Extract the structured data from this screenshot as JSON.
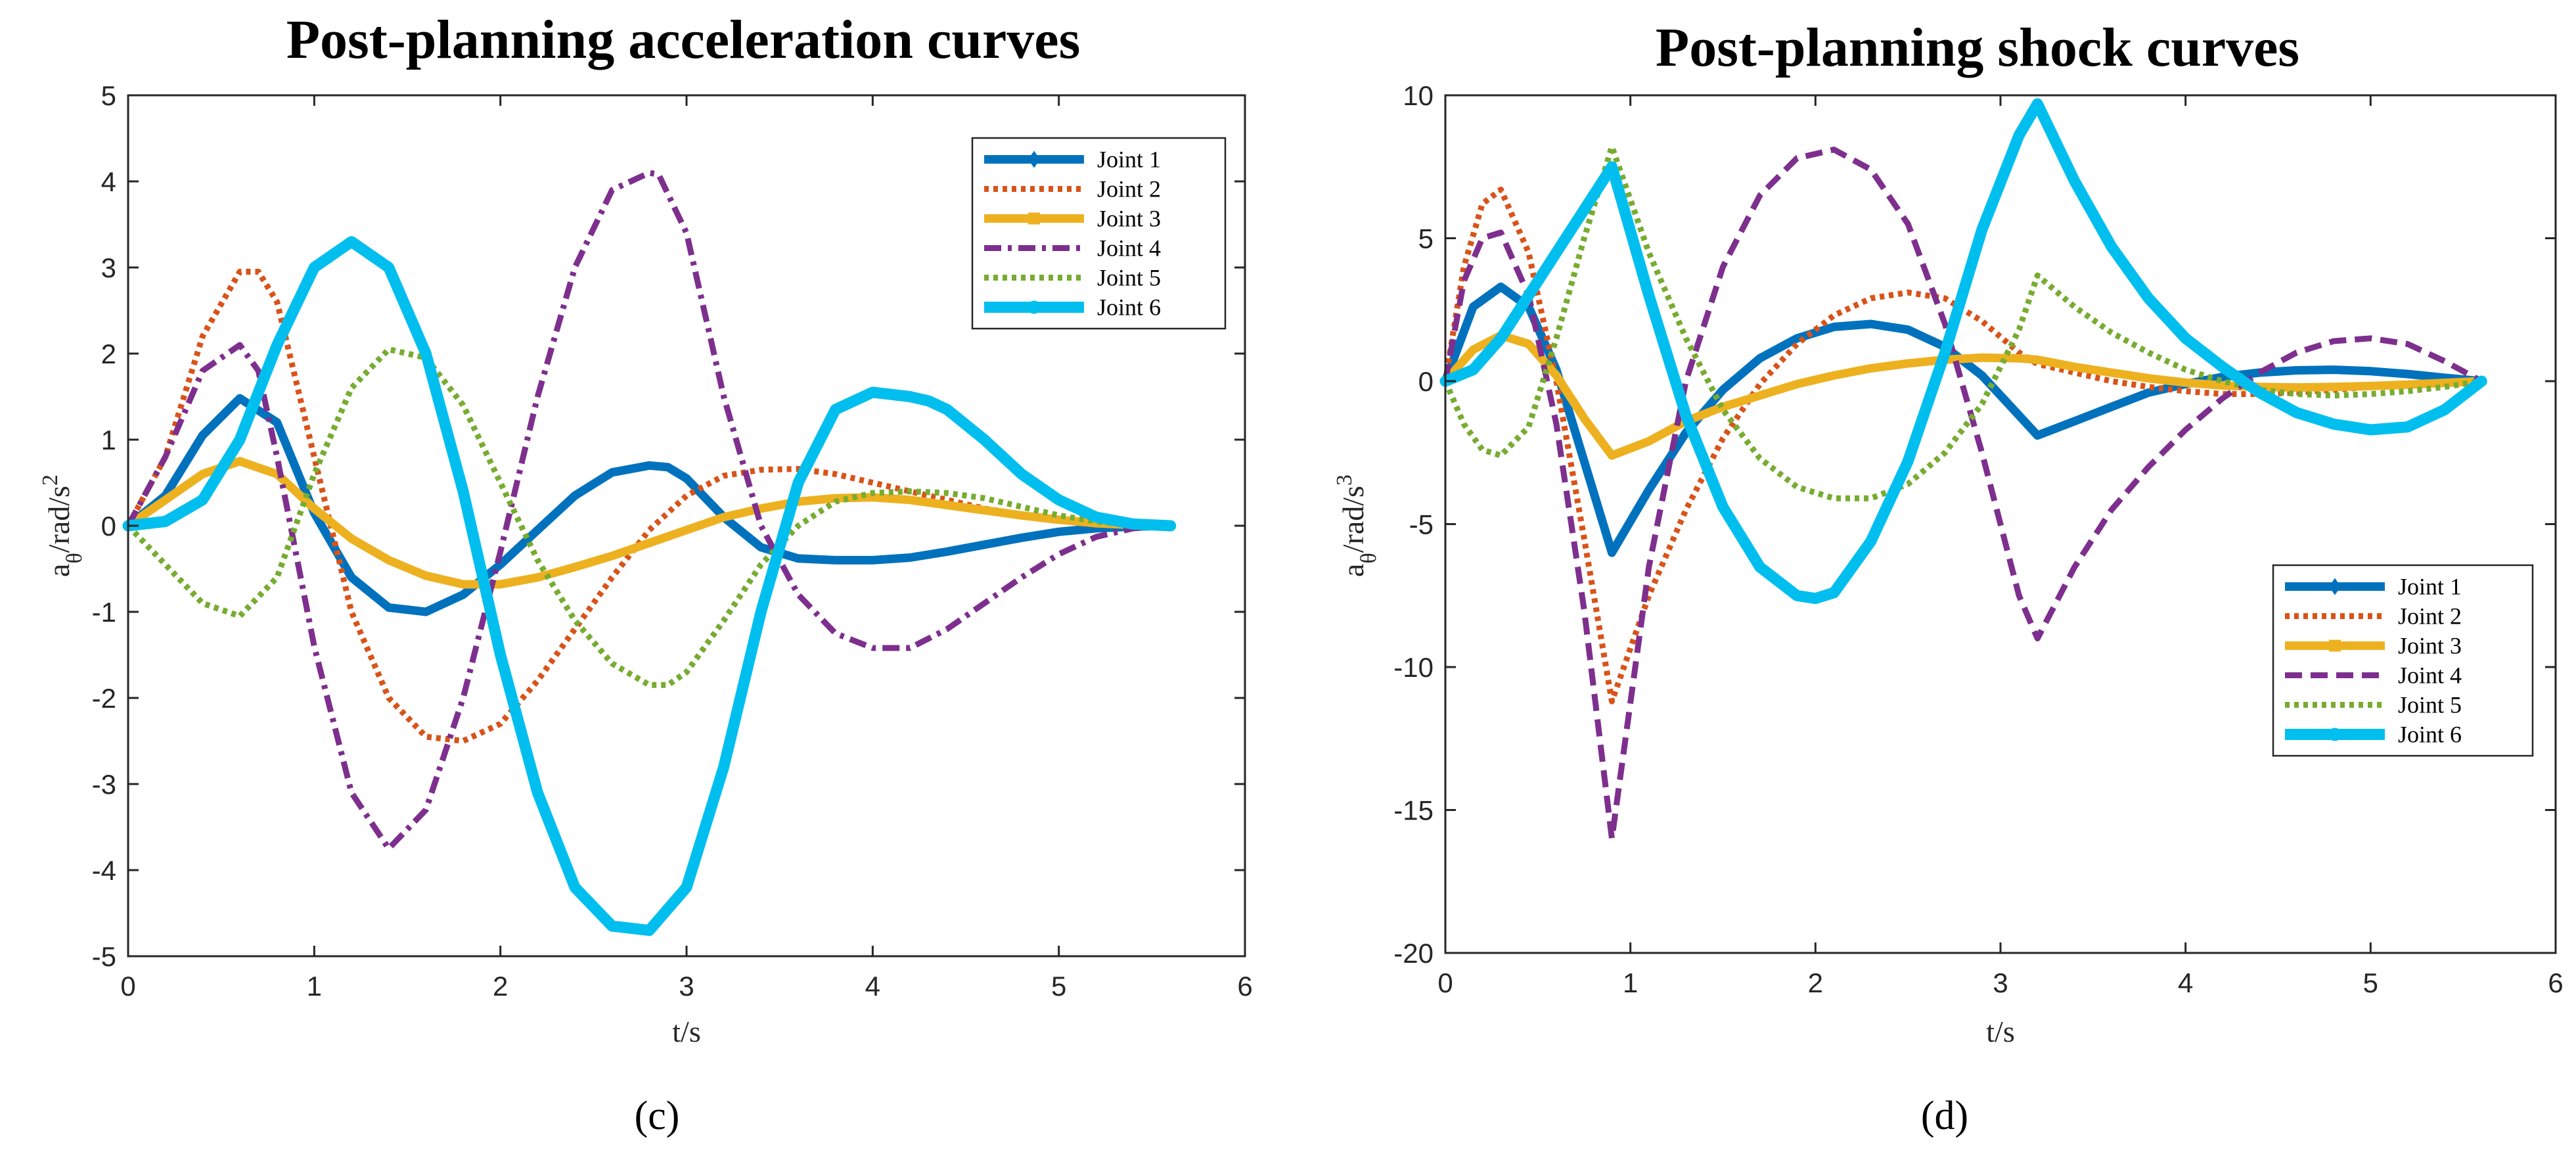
{
  "chart_data": [
    {
      "type": "line",
      "title": "Post-planning acceleration curves",
      "panel_label": "(c)",
      "xlabel": "t/s",
      "ylabel": "a_θ/rad/s²",
      "ylabel_parts": [
        "a",
        "θ",
        "/rad/s",
        "2"
      ],
      "xlim": [
        0,
        6
      ],
      "ylim": [
        -5,
        5
      ],
      "xticks": [
        0,
        1,
        2,
        3,
        4,
        5,
        6
      ],
      "yticks": [
        -5,
        -4,
        -3,
        -2,
        -1,
        0,
        1,
        2,
        3,
        4,
        5
      ],
      "legend_position": "top-right",
      "series": [
        {
          "name": "Joint 1",
          "color": "#0072BD",
          "dash": "0",
          "marker": "diamond",
          "width": 13,
          "x": [
            0,
            0.2,
            0.4,
            0.6,
            0.8,
            1.0,
            1.2,
            1.4,
            1.6,
            1.8,
            2.0,
            2.2,
            2.4,
            2.6,
            2.8,
            2.9,
            3.0,
            3.2,
            3.4,
            3.6,
            3.8,
            4.0,
            4.2,
            4.4,
            4.6,
            4.8,
            5.0,
            5.2,
            5.4,
            5.6
          ],
          "y": [
            0,
            0.35,
            1.05,
            1.48,
            1.2,
            0.15,
            -0.6,
            -0.95,
            -1.0,
            -0.8,
            -0.45,
            -0.05,
            0.35,
            0.62,
            0.7,
            0.68,
            0.55,
            0.1,
            -0.25,
            -0.38,
            -0.4,
            -0.4,
            -0.37,
            -0.3,
            -0.22,
            -0.14,
            -0.07,
            -0.03,
            -0.01,
            0
          ]
        },
        {
          "name": "Joint 2",
          "color": "#D95319",
          "dash": "7 7",
          "marker": "none",
          "width": 9,
          "x": [
            0,
            0.2,
            0.4,
            0.6,
            0.7,
            0.8,
            1.0,
            1.2,
            1.4,
            1.6,
            1.8,
            2.0,
            2.2,
            2.4,
            2.6,
            2.8,
            3.0,
            3.2,
            3.4,
            3.6,
            3.8,
            4.0,
            4.2,
            4.4,
            4.6,
            4.8,
            5.0,
            5.2,
            5.4,
            5.6
          ],
          "y": [
            0,
            0.8,
            2.2,
            2.95,
            2.95,
            2.6,
            0.8,
            -1.0,
            -2.0,
            -2.45,
            -2.5,
            -2.3,
            -1.8,
            -1.2,
            -0.6,
            -0.05,
            0.35,
            0.58,
            0.65,
            0.66,
            0.6,
            0.5,
            0.4,
            0.3,
            0.2,
            0.13,
            0.07,
            0.03,
            0.01,
            0
          ]
        },
        {
          "name": "Joint 3",
          "color": "#EDB120",
          "dash": "0",
          "marker": "square",
          "width": 13,
          "x": [
            0,
            0.2,
            0.4,
            0.6,
            0.8,
            1.0,
            1.2,
            1.4,
            1.6,
            1.8,
            2.0,
            2.2,
            2.4,
            2.6,
            2.8,
            3.0,
            3.2,
            3.4,
            3.6,
            3.8,
            4.0,
            4.2,
            4.4,
            4.6,
            4.8,
            5.0,
            5.2,
            5.4,
            5.6
          ],
          "y": [
            0,
            0.3,
            0.6,
            0.75,
            0.6,
            0.2,
            -0.15,
            -0.4,
            -0.58,
            -0.68,
            -0.68,
            -0.6,
            -0.48,
            -0.35,
            -0.2,
            -0.05,
            0.1,
            0.2,
            0.28,
            0.32,
            0.33,
            0.3,
            0.24,
            0.18,
            0.12,
            0.07,
            0.03,
            0.01,
            0
          ]
        },
        {
          "name": "Joint 4",
          "color": "#7E2F8E",
          "dash": "26 10 6 10",
          "marker": "none",
          "width": 9,
          "x": [
            0,
            0.2,
            0.4,
            0.6,
            0.7,
            0.8,
            1.0,
            1.2,
            1.4,
            1.6,
            1.8,
            2.0,
            2.2,
            2.4,
            2.6,
            2.8,
            2.85,
            3.0,
            3.2,
            3.4,
            3.6,
            3.8,
            4.0,
            4.2,
            4.4,
            4.6,
            4.8,
            5.0,
            5.2,
            5.4,
            5.6
          ],
          "y": [
            0,
            0.8,
            1.8,
            2.1,
            1.8,
            0.8,
            -1.4,
            -3.1,
            -3.75,
            -3.3,
            -2.0,
            -0.3,
            1.5,
            3.0,
            3.9,
            4.1,
            4.08,
            3.4,
            1.5,
            0.0,
            -0.8,
            -1.25,
            -1.42,
            -1.42,
            -1.2,
            -0.9,
            -0.6,
            -0.33,
            -0.13,
            -0.03,
            0
          ]
        },
        {
          "name": "Joint 5",
          "color": "#77AC30",
          "dash": "7 7",
          "marker": "none",
          "width": 9,
          "x": [
            0,
            0.2,
            0.4,
            0.6,
            0.8,
            1.0,
            1.2,
            1.4,
            1.6,
            1.8,
            2.0,
            2.2,
            2.4,
            2.6,
            2.8,
            2.9,
            3.0,
            3.2,
            3.4,
            3.6,
            3.8,
            4.0,
            4.2,
            4.4,
            4.6,
            4.8,
            5.0,
            5.2,
            5.4,
            5.6
          ],
          "y": [
            0,
            -0.45,
            -0.9,
            -1.05,
            -0.6,
            0.6,
            1.6,
            2.05,
            1.95,
            1.4,
            0.5,
            -0.4,
            -1.1,
            -1.6,
            -1.85,
            -1.85,
            -1.7,
            -1.1,
            -0.45,
            0.0,
            0.28,
            0.38,
            0.4,
            0.38,
            0.32,
            0.22,
            0.12,
            0.05,
            0.01,
            0
          ]
        },
        {
          "name": "Joint 6",
          "color": "#00BFEF",
          "dash": "0",
          "marker": "circle",
          "width": 17,
          "x": [
            0,
            0.2,
            0.4,
            0.6,
            0.8,
            1.0,
            1.2,
            1.4,
            1.6,
            1.8,
            2.0,
            2.2,
            2.4,
            2.6,
            2.8,
            3.0,
            3.2,
            3.4,
            3.6,
            3.8,
            4.0,
            4.2,
            4.3,
            4.4,
            4.6,
            4.8,
            5.0,
            5.2,
            5.4,
            5.6
          ],
          "y": [
            0,
            0.05,
            0.3,
            1.0,
            2.1,
            3.0,
            3.3,
            3.0,
            2.0,
            0.4,
            -1.5,
            -3.1,
            -4.2,
            -4.65,
            -4.7,
            -4.2,
            -2.8,
            -1.0,
            0.5,
            1.35,
            1.55,
            1.5,
            1.45,
            1.35,
            1.0,
            0.6,
            0.3,
            0.1,
            0.02,
            0
          ]
        }
      ]
    },
    {
      "type": "line",
      "title": "Post-planning shock curves",
      "panel_label": "(d)",
      "xlabel": "t/s",
      "ylabel": "a_θ/rad/s³",
      "ylabel_parts": [
        "a",
        "θ",
        "/rad/s",
        "3"
      ],
      "xlim": [
        0,
        6
      ],
      "ylim": [
        -20,
        10
      ],
      "xticks": [
        0,
        1,
        2,
        3,
        4,
        5,
        6
      ],
      "yticks": [
        -20,
        -15,
        -10,
        -5,
        0,
        5,
        10
      ],
      "legend_position": "bottom-right",
      "series": [
        {
          "name": "Joint 1",
          "color": "#0072BD",
          "dash": "0",
          "marker": "diamond",
          "width": 13,
          "x": [
            0,
            0.15,
            0.3,
            0.45,
            0.6,
            0.75,
            0.9,
            1.1,
            1.3,
            1.5,
            1.7,
            1.9,
            2.1,
            2.3,
            2.5,
            2.7,
            2.9,
            3.1,
            3.2,
            3.4,
            3.6,
            3.8,
            4.0,
            4.2,
            4.4,
            4.6,
            4.8,
            5.0,
            5.2,
            5.4,
            5.6
          ],
          "y": [
            0,
            2.6,
            3.3,
            2.6,
            0.4,
            -2.8,
            -6.0,
            -3.8,
            -1.8,
            -0.3,
            0.8,
            1.5,
            1.9,
            2.0,
            1.8,
            1.2,
            0.2,
            -1.2,
            -1.9,
            -1.4,
            -0.9,
            -0.4,
            -0.1,
            0.15,
            0.3,
            0.38,
            0.4,
            0.35,
            0.25,
            0.12,
            0
          ]
        },
        {
          "name": "Joint 2",
          "color": "#D95319",
          "dash": "7 7",
          "marker": "none",
          "width": 9,
          "x": [
            0,
            0.1,
            0.2,
            0.3,
            0.45,
            0.6,
            0.75,
            0.9,
            1.1,
            1.3,
            1.5,
            1.7,
            1.9,
            2.1,
            2.3,
            2.5,
            2.7,
            2.9,
            3.1,
            3.2,
            3.4,
            3.6,
            3.8,
            4.0,
            4.2,
            4.4,
            4.6,
            4.8,
            5.0,
            5.2,
            5.4,
            5.6
          ],
          "y": [
            0,
            4.0,
            6.2,
            6.7,
            4.5,
            0.0,
            -5.5,
            -11.2,
            -7.5,
            -4.5,
            -2.0,
            -0.1,
            1.3,
            2.3,
            2.9,
            3.1,
            2.9,
            2.1,
            1.0,
            0.6,
            0.3,
            0.0,
            -0.2,
            -0.35,
            -0.45,
            -0.45,
            -0.4,
            -0.3,
            -0.2,
            -0.1,
            -0.04,
            0
          ]
        },
        {
          "name": "Joint 3",
          "color": "#EDB120",
          "dash": "0",
          "marker": "square",
          "width": 13,
          "x": [
            0,
            0.15,
            0.3,
            0.45,
            0.6,
            0.75,
            0.9,
            1.1,
            1.3,
            1.5,
            1.7,
            1.9,
            2.1,
            2.3,
            2.5,
            2.7,
            2.9,
            3.1,
            3.2,
            3.4,
            3.6,
            3.8,
            4.0,
            4.2,
            4.4,
            4.6,
            4.8,
            5.0,
            5.2,
            5.4,
            5.6
          ],
          "y": [
            0,
            1.1,
            1.6,
            1.3,
            0.2,
            -1.3,
            -2.6,
            -2.1,
            -1.4,
            -0.9,
            -0.5,
            -0.1,
            0.2,
            0.45,
            0.62,
            0.75,
            0.82,
            0.8,
            0.75,
            0.5,
            0.3,
            0.1,
            -0.05,
            -0.15,
            -0.2,
            -0.22,
            -0.2,
            -0.17,
            -0.12,
            -0.06,
            0
          ]
        },
        {
          "name": "Joint 4",
          "color": "#7E2F8E",
          "dash": "26 13",
          "marker": "none",
          "width": 9,
          "x": [
            0,
            0.1,
            0.2,
            0.3,
            0.45,
            0.6,
            0.75,
            0.9,
            1.1,
            1.3,
            1.5,
            1.7,
            1.9,
            2.1,
            2.3,
            2.5,
            2.7,
            2.9,
            3.1,
            3.2,
            3.4,
            3.6,
            3.8,
            4.0,
            4.2,
            4.4,
            4.6,
            4.8,
            5.0,
            5.2,
            5.4,
            5.6
          ],
          "y": [
            0,
            3.5,
            5.0,
            5.2,
            3.0,
            -1.5,
            -8.0,
            -16.0,
            -6.5,
            0.0,
            4.0,
            6.5,
            7.8,
            8.1,
            7.4,
            5.5,
            2.0,
            -2.5,
            -7.5,
            -9.0,
            -6.5,
            -4.5,
            -3.0,
            -1.7,
            -0.6,
            0.3,
            1.0,
            1.4,
            1.5,
            1.3,
            0.7,
            0
          ]
        },
        {
          "name": "Joint 5",
          "color": "#77AC30",
          "dash": "7 7",
          "marker": "none",
          "width": 9,
          "x": [
            0,
            0.1,
            0.2,
            0.3,
            0.45,
            0.6,
            0.75,
            0.9,
            1.1,
            1.3,
            1.5,
            1.7,
            1.9,
            2.1,
            2.3,
            2.5,
            2.7,
            2.9,
            3.1,
            3.2,
            3.4,
            3.6,
            3.8,
            4.0,
            4.2,
            4.4,
            4.6,
            4.8,
            5.0,
            5.2,
            5.4,
            5.6
          ],
          "y": [
            0,
            -1.5,
            -2.4,
            -2.6,
            -1.6,
            1.5,
            5.0,
            8.2,
            4.5,
            1.5,
            -1.0,
            -2.7,
            -3.7,
            -4.1,
            -4.1,
            -3.6,
            -2.5,
            -0.8,
            1.8,
            3.7,
            2.6,
            1.7,
            1.0,
            0.4,
            0.0,
            -0.3,
            -0.45,
            -0.5,
            -0.45,
            -0.35,
            -0.2,
            0
          ]
        },
        {
          "name": "Joint 6",
          "color": "#00BFEF",
          "dash": "0",
          "marker": "circle",
          "width": 17,
          "x": [
            0,
            0.15,
            0.3,
            0.45,
            0.6,
            0.75,
            0.9,
            1.1,
            1.3,
            1.5,
            1.7,
            1.9,
            2.0,
            2.1,
            2.3,
            2.5,
            2.7,
            2.9,
            3.1,
            3.2,
            3.4,
            3.6,
            3.8,
            4.0,
            4.2,
            4.4,
            4.6,
            4.8,
            5.0,
            5.2,
            5.4,
            5.6
          ],
          "y": [
            0,
            0.4,
            1.5,
            3.0,
            4.5,
            6.0,
            7.5,
            3.0,
            -1.2,
            -4.4,
            -6.5,
            -7.5,
            -7.6,
            -7.4,
            -5.6,
            -2.8,
            1.0,
            5.3,
            8.6,
            9.7,
            7.0,
            4.7,
            2.9,
            1.5,
            0.5,
            -0.4,
            -1.1,
            -1.5,
            -1.7,
            -1.6,
            -1.0,
            0
          ]
        }
      ]
    }
  ]
}
